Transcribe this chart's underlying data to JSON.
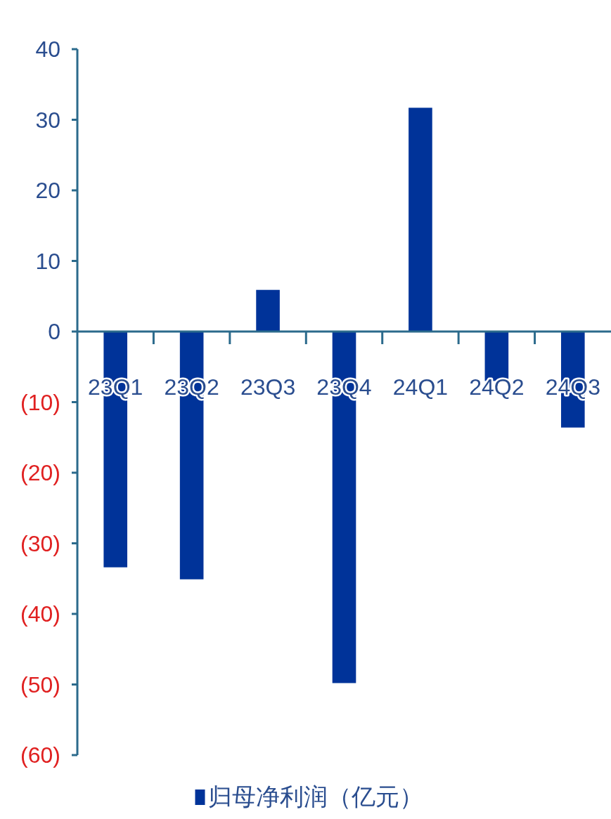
{
  "chart_data": {
    "type": "bar",
    "categories": [
      "23Q1",
      "23Q2",
      "23Q3",
      "23Q4",
      "24Q1",
      "24Q2",
      "24Q3"
    ],
    "series": [
      {
        "name": "归母净利润（亿元）",
        "color": "#003399",
        "values": [
          -33.4,
          -35.1,
          5.9,
          -49.8,
          31.7,
          -7.0,
          -13.6
        ]
      }
    ],
    "ylim": [
      -60,
      40
    ],
    "yticks": [
      {
        "value": -60,
        "label": "(60)"
      },
      {
        "value": -50,
        "label": "(50)"
      },
      {
        "value": -40,
        "label": "(40)"
      },
      {
        "value": -30,
        "label": "(30)"
      },
      {
        "value": -20,
        "label": "(20)"
      },
      {
        "value": -10,
        "label": "(10)"
      },
      0,
      10,
      20,
      30,
      40
    ],
    "legend": "bottom"
  }
}
